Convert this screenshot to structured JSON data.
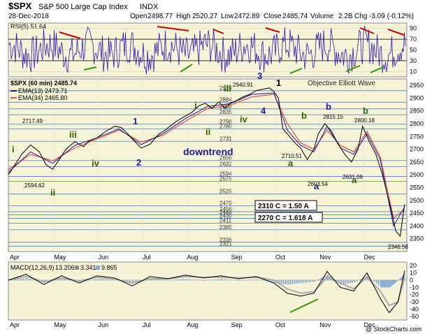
{
  "header": {
    "symbol": "$SPX",
    "name": "S&P 500 Large Cap Index",
    "exchange": "INDX",
    "date": "28-Dec-2018",
    "open_label": "Open",
    "open": "2498.77",
    "high_label": "High",
    "high": "2520.27",
    "low_label": "Low",
    "low": "2472.89",
    "close_label": "Close",
    "close": "2485.74",
    "volume_label": "Volume",
    "volume": "2.2B",
    "chg_label": "Chg",
    "chg": "-3.09 (-0.12%)",
    "watermark": "Objective Elliott Wave",
    "credit": "@ StockCharts.com"
  },
  "colors": {
    "panel_bg": "#f7f3d6",
    "rsi_line": "#2d19b5",
    "price_line": "#000000",
    "ema13": "#1a1a99",
    "ema34": "#e0504a",
    "macd_line": "#000000",
    "macd_signal": "#aaaaaa",
    "hist": "#88a8d8",
    "fib": "#4a7fc0",
    "wave_green": "#336600",
    "wave_blue": "#1a1a99",
    "div_red": "#cc0000",
    "div_green": "#339900"
  },
  "rsi_panel": {
    "legend": "RSI(5) 51.64",
    "ticks": [
      "90",
      "70",
      "50",
      "30",
      "10"
    ]
  },
  "price_panel": {
    "legend_main": "$SPX (60 min) 2485.74",
    "legend_ema13": "EMA(13) 2473.71",
    "legend_ema34": "EMA(34) 2465.80",
    "ticks": [
      "2950",
      "2900",
      "2850",
      "2800",
      "2750",
      "2700",
      "2650",
      "2600",
      "2550",
      "2500",
      "2450",
      "2400",
      "2350"
    ],
    "fib_labels": [
      "2929",
      "2884",
      "2858",
      "2835",
      "2798",
      "2780",
      "2731",
      "2656",
      "2632",
      "2594",
      "2575",
      "2525",
      "2479",
      "2456",
      "2444",
      "2430",
      "2411",
      "2385",
      "2336",
      "2321"
    ],
    "price_labels": [
      "2717.49",
      "2594.62",
      "2940.91",
      "2710.51",
      "2603.54",
      "2815.15",
      "2800.18",
      "2631.09",
      "2346.58"
    ],
    "wave_labels": [
      "i",
      "ii",
      "iii",
      "iv",
      "1",
      "2",
      "i",
      "ii",
      "iii",
      "iv",
      "3",
      "4",
      "1",
      "a",
      "b",
      "a",
      "b",
      "a",
      "b"
    ],
    "annotation_downtrend": "downtrend",
    "box1": "2310 C = 1.50 A",
    "box2": "2270 C = 1.618 A"
  },
  "macd_panel": {
    "legend_label": "MACD(12,26,9)",
    "legend_v1": "13.206",
    "legend_v2": "3.341",
    "legend_v3": "9.865",
    "ticks": [
      "20",
      "10",
      "0",
      "-10",
      "-20",
      "-30",
      "-40",
      "-50"
    ]
  },
  "xaxis": {
    "months": [
      "Apr",
      "May",
      "Jun",
      "Jul",
      "Aug",
      "Sep",
      "Oct",
      "Nov",
      "Dec"
    ]
  },
  "chart_data": [
    {
      "type": "line",
      "title": "RSI(5) 51.64",
      "ylim": [
        0,
        100
      ],
      "y_ticks": [
        90,
        70,
        50,
        30,
        10
      ],
      "reference_lines": [
        70,
        30
      ]
    },
    {
      "type": "line",
      "title": "$SPX (60 min) 2485.74",
      "x_categories": [
        "Apr",
        "May",
        "Jun",
        "Jul",
        "Aug",
        "Sep",
        "Oct",
        "Nov",
        "Dec"
      ],
      "ylim": [
        2300,
        2975
      ],
      "y_ticks": [
        2950,
        2900,
        2850,
        2800,
        2750,
        2700,
        2650,
        2600,
        2550,
        2500,
        2450,
        2400,
        2350
      ],
      "series": [
        {
          "name": "$SPX (60 min) 2485.74",
          "x": [
            0,
            0.15,
            0.3,
            0.5,
            0.7,
            0.85,
            1.0,
            1.15,
            1.3,
            1.5,
            1.7,
            1.8,
            2.0,
            2.2,
            2.4,
            2.55,
            2.7,
            2.8,
            3.0,
            3.2,
            3.4,
            3.5,
            3.65,
            3.8,
            4.0,
            4.15,
            4.3,
            4.45,
            4.6,
            4.75,
            4.9,
            5.0,
            5.15,
            5.3,
            5.45,
            5.6,
            5.75,
            5.9,
            6.0,
            6.1,
            6.2,
            6.35,
            6.5,
            6.6,
            6.75,
            6.9,
            7.0,
            7.15,
            7.3,
            7.45,
            7.6,
            7.75,
            7.9,
            8.0,
            8.15,
            8.3,
            8.45,
            8.55,
            8.65,
            8.75,
            8.85,
            8.95
          ],
          "values": [
            2600,
            2640,
            2680,
            2717,
            2690,
            2640,
            2622,
            2660,
            2700,
            2730,
            2710,
            2730,
            2745,
            2770,
            2790,
            2785,
            2760,
            2740,
            2705,
            2720,
            2760,
            2770,
            2790,
            2810,
            2830,
            2845,
            2870,
            2880,
            2860,
            2885,
            2860,
            2880,
            2890,
            2905,
            2915,
            2930,
            2935,
            2940,
            2925,
            2900,
            2780,
            2750,
            2720,
            2705,
            2660,
            2700,
            2760,
            2800,
            2770,
            2720,
            2680,
            2650,
            2700,
            2790,
            2730,
            2680,
            2600,
            2530,
            2460,
            2380,
            2360,
            2485
          ]
        },
        {
          "name": "EMA(13) 2473.71",
          "x": [
            0,
            0.5,
            1.0,
            1.5,
            2.0,
            2.5,
            3.0,
            3.5,
            4.0,
            4.5,
            5.0,
            5.5,
            6.0,
            6.3,
            6.6,
            6.9,
            7.2,
            7.5,
            7.8,
            8.1,
            8.4,
            8.7,
            8.95
          ],
          "values": [
            2610,
            2690,
            2645,
            2715,
            2745,
            2780,
            2718,
            2762,
            2820,
            2868,
            2878,
            2915,
            2920,
            2775,
            2715,
            2690,
            2790,
            2705,
            2680,
            2760,
            2660,
            2400,
            2474
          ]
        },
        {
          "name": "EMA(34) 2465.80",
          "x": [
            0,
            0.5,
            1.0,
            1.5,
            2.0,
            2.5,
            3.0,
            3.5,
            4.0,
            4.5,
            5.0,
            5.5,
            6.0,
            6.3,
            6.6,
            6.9,
            7.2,
            7.5,
            7.8,
            8.1,
            8.4,
            8.7,
            8.95
          ],
          "values": [
            2620,
            2680,
            2655,
            2705,
            2740,
            2775,
            2728,
            2755,
            2810,
            2860,
            2872,
            2905,
            2915,
            2800,
            2725,
            2700,
            2775,
            2715,
            2690,
            2770,
            2670,
            2430,
            2466
          ]
        }
      ],
      "reference_levels": [
        2929,
        2884,
        2858,
        2835,
        2798,
        2780,
        2731,
        2656,
        2632,
        2594,
        2575,
        2525,
        2479,
        2456,
        2444,
        2430,
        2411,
        2385,
        2336,
        2321
      ]
    },
    {
      "type": "line",
      "title": "MACD(12,26,9) 13.206, 3.341, 9.865",
      "ylim": [
        -55,
        25
      ],
      "y_ticks": [
        20,
        10,
        0,
        -10,
        -20,
        -30,
        -40,
        -50
      ],
      "series": [
        {
          "name": "MACD(12,26,9)",
          "x": [
            0,
            0.4,
            0.8,
            1.2,
            1.6,
            2.0,
            2.4,
            2.8,
            3.2,
            3.6,
            4.0,
            4.4,
            4.8,
            5.2,
            5.6,
            6.0,
            6.3,
            6.6,
            6.9,
            7.2,
            7.5,
            7.8,
            8.1,
            8.4,
            8.6,
            8.8,
            8.95
          ],
          "values": [
            0,
            8,
            -6,
            6,
            -4,
            6,
            3,
            -8,
            5,
            2,
            7,
            3,
            6,
            2,
            5,
            -4,
            -18,
            -22,
            -18,
            12,
            -10,
            -15,
            10,
            -25,
            -45,
            -30,
            13
          ]
        },
        {
          "name": "Signal",
          "x": [
            0,
            0.4,
            0.8,
            1.2,
            1.6,
            2.0,
            2.4,
            2.8,
            3.2,
            3.6,
            4.0,
            4.4,
            4.8,
            5.2,
            5.6,
            6.0,
            6.3,
            6.6,
            6.9,
            7.2,
            7.5,
            7.8,
            8.1,
            8.4,
            8.6,
            8.8,
            8.95
          ],
          "values": [
            0,
            5,
            -2,
            3,
            -1,
            4,
            2,
            -4,
            2,
            2,
            5,
            4,
            4,
            3,
            4,
            0,
            -12,
            -18,
            -16,
            4,
            -4,
            -12,
            4,
            -15,
            -35,
            -30,
            3
          ]
        }
      ]
    }
  ]
}
